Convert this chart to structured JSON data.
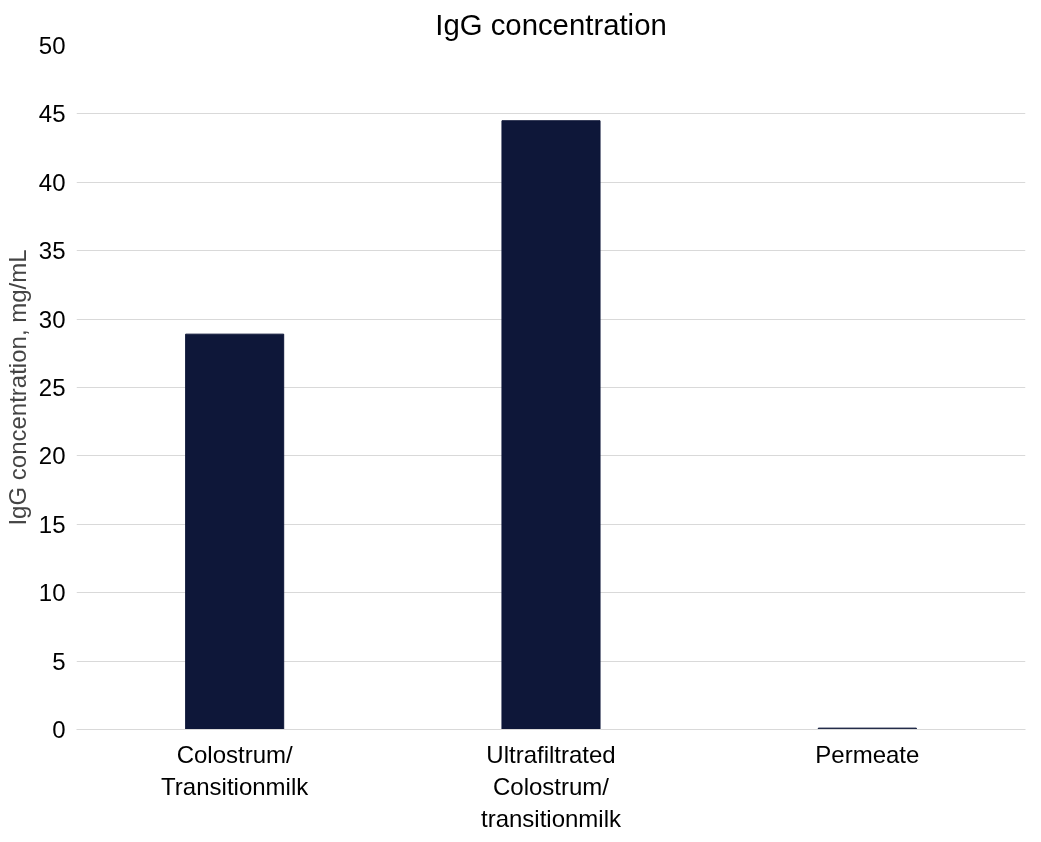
{
  "chart_data": {
    "type": "bar",
    "title": "IgG concentration",
    "ylabel": "IgG concentration, mg/mL",
    "categories": [
      "Colostrum/\nTransitionmilk",
      "Ultrafiltrated\nColostrum/\ntransitionmilk",
      "Permeate"
    ],
    "values": [
      28.9,
      44.5,
      0.1
    ],
    "color": "#0e1739",
    "ylim": [
      0,
      50
    ],
    "yticks": [
      0,
      5,
      10,
      15,
      20,
      25,
      30,
      35,
      40,
      45,
      50
    ],
    "grid": "y"
  }
}
